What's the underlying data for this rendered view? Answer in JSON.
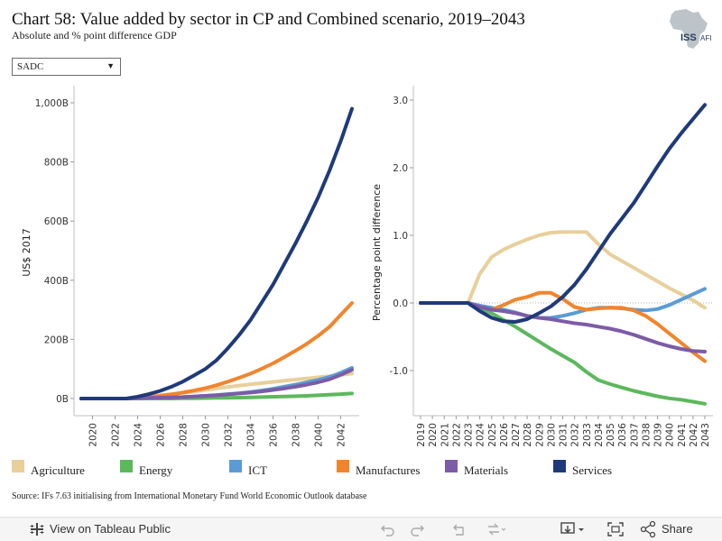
{
  "title": "Chart 58: Value added by sector in CP and Combined scenario, 2019–2043",
  "subtitle": "Absolute and % point difference GDP",
  "logo": {
    "text": "ISS",
    "text2": "AFI"
  },
  "filter": {
    "selected": "SADC"
  },
  "legend": [
    {
      "name": "Agriculture",
      "color": "#e8cf9b"
    },
    {
      "name": "Energy",
      "color": "#5cb85c"
    },
    {
      "name": "ICT",
      "color": "#5b9bd5"
    },
    {
      "name": "Manufactures",
      "color": "#f0852d"
    },
    {
      "name": "Materials",
      "color": "#7d5ba6"
    },
    {
      "name": "Services",
      "color": "#1f3a7a"
    }
  ],
  "source": "Source: IFs 7.63 initialising from International Monetary Fund World Economic Outlook database",
  "toolbar": {
    "view_label": "View on Tableau Public",
    "share_label": "Share"
  },
  "chart_data": [
    {
      "type": "line",
      "title": "",
      "ylabel": "US$ 2017",
      "ylim": [
        0,
        1000
      ],
      "yticks": [
        "0B",
        "200B",
        "400B",
        "600B",
        "800B",
        "1,000B"
      ],
      "ytick_values": [
        0,
        200,
        400,
        600,
        800,
        1000
      ],
      "xticks": [
        "2020",
        "2022",
        "2024",
        "2026",
        "2028",
        "2030",
        "2032",
        "2034",
        "2036",
        "2038",
        "2040",
        "2042"
      ],
      "x": [
        2019,
        2020,
        2021,
        2022,
        2023,
        2024,
        2025,
        2026,
        2027,
        2028,
        2029,
        2030,
        2031,
        2032,
        2033,
        2034,
        2035,
        2036,
        2037,
        2038,
        2039,
        2040,
        2041,
        2042,
        2043
      ],
      "series": [
        {
          "name": "Agriculture",
          "color": "#e8cf9b",
          "values": [
            0,
            0,
            0,
            0,
            0,
            3,
            7,
            11,
            15,
            19,
            24,
            29,
            34,
            39,
            44,
            48,
            52,
            56,
            60,
            64,
            68,
            72,
            76,
            80,
            84
          ]
        },
        {
          "name": "Energy",
          "color": "#5cb85c",
          "values": [
            0,
            0,
            0,
            0,
            0,
            0,
            0,
            0,
            0,
            0.5,
            1,
            1.5,
            2,
            2.5,
            3,
            4,
            5,
            6,
            7,
            8,
            9,
            11,
            13,
            15,
            17
          ]
        },
        {
          "name": "ICT",
          "color": "#5b9bd5",
          "values": [
            0,
            0,
            0,
            0,
            0,
            1,
            2,
            3,
            4,
            5,
            7,
            9,
            12,
            15,
            18,
            22,
            27,
            33,
            40,
            47,
            55,
            63,
            73,
            87,
            104
          ]
        },
        {
          "name": "Manufactures",
          "color": "#f0852d",
          "values": [
            0,
            0,
            0,
            0,
            0,
            2,
            5,
            9,
            14,
            20,
            27,
            35,
            45,
            57,
            70,
            84,
            101,
            119,
            140,
            162,
            185,
            212,
            242,
            283,
            323
          ]
        },
        {
          "name": "Materials",
          "color": "#7d5ba6",
          "values": [
            0,
            0,
            0,
            0,
            0,
            1,
            2,
            3,
            4,
            5,
            7,
            9,
            11,
            14,
            17,
            20,
            24,
            29,
            34,
            40,
            47,
            55,
            65,
            80,
            97
          ]
        },
        {
          "name": "Services",
          "color": "#1f3a7a",
          "values": [
            0,
            0,
            0,
            0,
            0,
            6,
            15,
            26,
            40,
            57,
            78,
            100,
            130,
            170,
            215,
            265,
            325,
            385,
            455,
            525,
            600,
            680,
            770,
            870,
            980
          ]
        }
      ]
    },
    {
      "type": "line",
      "title": "",
      "ylabel": "Percentage point difference",
      "ylim": [
        -1.5,
        3.0
      ],
      "yticks": [
        "-1.0",
        "0.0",
        "1.0",
        "2.0",
        "3.0"
      ],
      "ytick_values": [
        -1,
        0,
        1,
        2,
        3
      ],
      "xticks": [
        "2019",
        "2020",
        "2021",
        "2022",
        "2023",
        "2024",
        "2025",
        "2026",
        "2027",
        "2028",
        "2029",
        "2030",
        "2031",
        "2032",
        "2033",
        "2034",
        "2035",
        "2036",
        "2037",
        "2038",
        "2039",
        "2040",
        "2041",
        "2042",
        "2043"
      ],
      "x": [
        2019,
        2020,
        2021,
        2022,
        2023,
        2024,
        2025,
        2026,
        2027,
        2028,
        2029,
        2030,
        2031,
        2032,
        2033,
        2034,
        2035,
        2036,
        2037,
        2038,
        2039,
        2040,
        2041,
        2042,
        2043
      ],
      "series": [
        {
          "name": "Agriculture",
          "color": "#e8cf9b",
          "values": [
            0,
            0,
            0,
            0,
            0,
            0.43,
            0.68,
            0.79,
            0.87,
            0.94,
            1.0,
            1.04,
            1.05,
            1.05,
            1.05,
            0.87,
            0.72,
            0.62,
            0.52,
            0.42,
            0.32,
            0.22,
            0.13,
            0.04,
            -0.07
          ]
        },
        {
          "name": "Energy",
          "color": "#5cb85c",
          "values": [
            0,
            0,
            0,
            0,
            0,
            -0.07,
            -0.15,
            -0.25,
            -0.35,
            -0.46,
            -0.57,
            -0.68,
            -0.78,
            -0.88,
            -1.02,
            -1.14,
            -1.2,
            -1.25,
            -1.3,
            -1.34,
            -1.38,
            -1.41,
            -1.43,
            -1.46,
            -1.49
          ]
        },
        {
          "name": "ICT",
          "color": "#5b9bd5",
          "values": [
            0,
            0,
            0,
            0,
            0,
            -0.04,
            -0.07,
            -0.1,
            -0.14,
            -0.19,
            -0.22,
            -0.22,
            -0.19,
            -0.15,
            -0.1,
            -0.07,
            -0.07,
            -0.08,
            -0.1,
            -0.11,
            -0.09,
            -0.03,
            0.05,
            0.13,
            0.21
          ]
        },
        {
          "name": "Manufactures",
          "color": "#f0852d",
          "values": [
            0,
            0,
            0,
            0,
            0,
            -0.06,
            -0.1,
            -0.03,
            0.05,
            0.09,
            0.15,
            0.15,
            0.06,
            -0.06,
            -0.1,
            -0.08,
            -0.07,
            -0.07,
            -0.11,
            -0.19,
            -0.31,
            -0.45,
            -0.59,
            -0.73,
            -0.86
          ]
        },
        {
          "name": "Materials",
          "color": "#7d5ba6",
          "values": [
            0,
            0,
            0,
            0,
            0,
            -0.06,
            -0.1,
            -0.12,
            -0.15,
            -0.19,
            -0.22,
            -0.24,
            -0.27,
            -0.3,
            -0.32,
            -0.35,
            -0.38,
            -0.42,
            -0.47,
            -0.53,
            -0.59,
            -0.64,
            -0.68,
            -0.71,
            -0.72
          ]
        },
        {
          "name": "Services",
          "color": "#1f3a7a",
          "values": [
            0,
            0,
            0,
            0,
            0,
            -0.12,
            -0.22,
            -0.27,
            -0.28,
            -0.24,
            -0.15,
            -0.05,
            0.09,
            0.27,
            0.5,
            0.76,
            1.02,
            1.25,
            1.48,
            1.75,
            2.02,
            2.28,
            2.51,
            2.72,
            2.93
          ]
        }
      ]
    }
  ]
}
